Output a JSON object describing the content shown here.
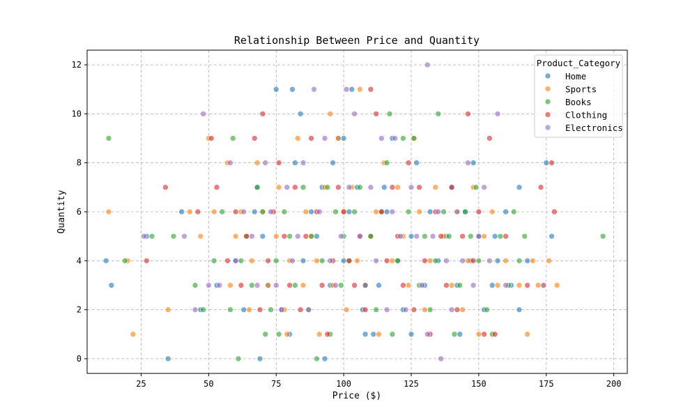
{
  "chart_data": {
    "type": "scatter",
    "title": "Relationship Between Price and Quantity",
    "xlabel": "Price ($)",
    "ylabel": "Quantity",
    "xlim": [
      5,
      205
    ],
    "ylim": [
      -0.6,
      12.6
    ],
    "xticks": [
      25,
      50,
      75,
      100,
      125,
      150,
      175,
      200
    ],
    "yticks": [
      0,
      2,
      4,
      6,
      8,
      10,
      12
    ],
    "grid": true,
    "legend": {
      "title": "Product_Category",
      "placement": "top-right"
    },
    "series": [
      {
        "name": "Home",
        "color": "#1f77b4",
        "points": [
          [
            12,
            4
          ],
          [
            14,
            3
          ],
          [
            27,
            5
          ],
          [
            35,
            0
          ],
          [
            40,
            6
          ],
          [
            47,
            2
          ],
          [
            53,
            3
          ],
          [
            60,
            4
          ],
          [
            63,
            2
          ],
          [
            67,
            6
          ],
          [
            68,
            7
          ],
          [
            69,
            0
          ],
          [
            70,
            5
          ],
          [
            72,
            3
          ],
          [
            75,
            11
          ],
          [
            77,
            2
          ],
          [
            80,
            1
          ],
          [
            81,
            11
          ],
          [
            82,
            8
          ],
          [
            84,
            10
          ],
          [
            85,
            4
          ],
          [
            88,
            6
          ],
          [
            90,
            5
          ],
          [
            92,
            7
          ],
          [
            93,
            0
          ],
          [
            95,
            3
          ],
          [
            96,
            8
          ],
          [
            98,
            9
          ],
          [
            100,
            4
          ],
          [
            100,
            9
          ],
          [
            102,
            6
          ],
          [
            103,
            11
          ],
          [
            105,
            7
          ],
          [
            107,
            2
          ],
          [
            108,
            1
          ],
          [
            110,
            5
          ],
          [
            111,
            1
          ],
          [
            113,
            3
          ],
          [
            115,
            7
          ],
          [
            116,
            6
          ],
          [
            118,
            9
          ],
          [
            120,
            4
          ],
          [
            122,
            2
          ],
          [
            125,
            5
          ],
          [
            125,
            1
          ],
          [
            127,
            8
          ],
          [
            130,
            3
          ],
          [
            132,
            6
          ],
          [
            135,
            4
          ],
          [
            138,
            5
          ],
          [
            140,
            7
          ],
          [
            142,
            3
          ],
          [
            143,
            1
          ],
          [
            145,
            6
          ],
          [
            147,
            4
          ],
          [
            148,
            8
          ],
          [
            150,
            5
          ],
          [
            152,
            2
          ],
          [
            155,
            3
          ],
          [
            156,
            5
          ],
          [
            157,
            4
          ],
          [
            160,
            6
          ],
          [
            162,
            3
          ],
          [
            165,
            7
          ],
          [
            165,
            2
          ],
          [
            168,
            4
          ],
          [
            175,
            8
          ],
          [
            177,
            5
          ]
        ]
      },
      {
        "name": "Sports",
        "color": "#ff7f0e",
        "points": [
          [
            13,
            6
          ],
          [
            20,
            4
          ],
          [
            22,
            1
          ],
          [
            35,
            2
          ],
          [
            43,
            6
          ],
          [
            47,
            5
          ],
          [
            50,
            9
          ],
          [
            52,
            6
          ],
          [
            57,
            8
          ],
          [
            58,
            3
          ],
          [
            60,
            5
          ],
          [
            62,
            6
          ],
          [
            65,
            2
          ],
          [
            66,
            4
          ],
          [
            68,
            8
          ],
          [
            70,
            6
          ],
          [
            72,
            3
          ],
          [
            75,
            5
          ],
          [
            76,
            7
          ],
          [
            78,
            2
          ],
          [
            79,
            1
          ],
          [
            80,
            4
          ],
          [
            83,
            9
          ],
          [
            85,
            3
          ],
          [
            86,
            6
          ],
          [
            88,
            5
          ],
          [
            90,
            4
          ],
          [
            91,
            1
          ],
          [
            93,
            7
          ],
          [
            95,
            10
          ],
          [
            96,
            3
          ],
          [
            98,
            9
          ],
          [
            100,
            6
          ],
          [
            101,
            2
          ],
          [
            103,
            7
          ],
          [
            105,
            4
          ],
          [
            106,
            11
          ],
          [
            108,
            3
          ],
          [
            110,
            5
          ],
          [
            112,
            6
          ],
          [
            113,
            1
          ],
          [
            115,
            8
          ],
          [
            118,
            4
          ],
          [
            120,
            7
          ],
          [
            122,
            5
          ],
          [
            124,
            3
          ],
          [
            126,
            9
          ],
          [
            128,
            6
          ],
          [
            130,
            2
          ],
          [
            132,
            4
          ],
          [
            134,
            7
          ],
          [
            137,
            5
          ],
          [
            140,
            3
          ],
          [
            142,
            6
          ],
          [
            144,
            2
          ],
          [
            146,
            4
          ],
          [
            148,
            7
          ],
          [
            150,
            1
          ],
          [
            152,
            5
          ],
          [
            155,
            6
          ],
          [
            157,
            3
          ],
          [
            160,
            4
          ],
          [
            165,
            3
          ],
          [
            168,
            1
          ],
          [
            170,
            4
          ],
          [
            172,
            3
          ],
          [
            174,
            3
          ],
          [
            176,
            4
          ],
          [
            179,
            3
          ]
        ]
      },
      {
        "name": "Books",
        "color": "#2ca02c",
        "points": [
          [
            13,
            9
          ],
          [
            19,
            4
          ],
          [
            29,
            5
          ],
          [
            37,
            5
          ],
          [
            45,
            3
          ],
          [
            48,
            2
          ],
          [
            52,
            4
          ],
          [
            55,
            6
          ],
          [
            58,
            2
          ],
          [
            59,
            9
          ],
          [
            61,
            0
          ],
          [
            62,
            4
          ],
          [
            64,
            5
          ],
          [
            66,
            3
          ],
          [
            68,
            7
          ],
          [
            70,
            6
          ],
          [
            71,
            1
          ],
          [
            73,
            2
          ],
          [
            75,
            4
          ],
          [
            76,
            1
          ],
          [
            78,
            6
          ],
          [
            80,
            5
          ],
          [
            82,
            3
          ],
          [
            85,
            7
          ],
          [
            87,
            2
          ],
          [
            88,
            5
          ],
          [
            90,
            0
          ],
          [
            92,
            4
          ],
          [
            94,
            7
          ],
          [
            95,
            1
          ],
          [
            97,
            6
          ],
          [
            99,
            3
          ],
          [
            100,
            5
          ],
          [
            102,
            4
          ],
          [
            104,
            6
          ],
          [
            106,
            7
          ],
          [
            108,
            3
          ],
          [
            110,
            5
          ],
          [
            112,
            2
          ],
          [
            114,
            6
          ],
          [
            116,
            8
          ],
          [
            117,
            10
          ],
          [
            118,
            1
          ],
          [
            120,
            4
          ],
          [
            122,
            9
          ],
          [
            124,
            6
          ],
          [
            126,
            9
          ],
          [
            128,
            3
          ],
          [
            130,
            5
          ],
          [
            132,
            2
          ],
          [
            134,
            4
          ],
          [
            135,
            10
          ],
          [
            137,
            6
          ],
          [
            139,
            5
          ],
          [
            141,
            1
          ],
          [
            143,
            3
          ],
          [
            145,
            6
          ],
          [
            147,
            5
          ],
          [
            149,
            7
          ],
          [
            150,
            4
          ],
          [
            153,
            2
          ],
          [
            155,
            1
          ],
          [
            158,
            5
          ],
          [
            161,
            3
          ],
          [
            163,
            6
          ],
          [
            165,
            4
          ],
          [
            167,
            5
          ],
          [
            196,
            5
          ]
        ]
      },
      {
        "name": "Clothing",
        "color": "#d62728",
        "points": [
          [
            27,
            4
          ],
          [
            34,
            7
          ],
          [
            46,
            6
          ],
          [
            51,
            9
          ],
          [
            53,
            7
          ],
          [
            57,
            4
          ],
          [
            60,
            6
          ],
          [
            62,
            3
          ],
          [
            64,
            5
          ],
          [
            67,
            9
          ],
          [
            69,
            2
          ],
          [
            70,
            10
          ],
          [
            72,
            4
          ],
          [
            74,
            6
          ],
          [
            76,
            8
          ],
          [
            78,
            5
          ],
          [
            80,
            3
          ],
          [
            82,
            7
          ],
          [
            84,
            2
          ],
          [
            86,
            5
          ],
          [
            88,
            9
          ],
          [
            90,
            6
          ],
          [
            92,
            3
          ],
          [
            94,
            1
          ],
          [
            96,
            4
          ],
          [
            98,
            7
          ],
          [
            100,
            6
          ],
          [
            102,
            4
          ],
          [
            104,
            3
          ],
          [
            106,
            5
          ],
          [
            108,
            2
          ],
          [
            110,
            11
          ],
          [
            112,
            10
          ],
          [
            114,
            6
          ],
          [
            116,
            4
          ],
          [
            118,
            7
          ],
          [
            120,
            5
          ],
          [
            122,
            3
          ],
          [
            124,
            8
          ],
          [
            126,
            2
          ],
          [
            128,
            7
          ],
          [
            130,
            4
          ],
          [
            132,
            1
          ],
          [
            134,
            6
          ],
          [
            136,
            5
          ],
          [
            138,
            3
          ],
          [
            140,
            7
          ],
          [
            142,
            2
          ],
          [
            144,
            5
          ],
          [
            146,
            10
          ],
          [
            148,
            4
          ],
          [
            150,
            6
          ],
          [
            152,
            1
          ],
          [
            154,
            9
          ],
          [
            156,
            1
          ],
          [
            160,
            5
          ],
          [
            168,
            3
          ],
          [
            173,
            7
          ],
          [
            177,
            8
          ],
          [
            178,
            6
          ]
        ]
      },
      {
        "name": "Electronics",
        "color": "#9467bd",
        "points": [
          [
            26,
            5
          ],
          [
            41,
            5
          ],
          [
            45,
            2
          ],
          [
            48,
            10
          ],
          [
            50,
            3
          ],
          [
            54,
            3
          ],
          [
            58,
            8
          ],
          [
            60,
            4
          ],
          [
            63,
            6
          ],
          [
            66,
            5
          ],
          [
            68,
            3
          ],
          [
            71,
            8
          ],
          [
            73,
            6
          ],
          [
            75,
            3
          ],
          [
            77,
            2
          ],
          [
            79,
            7
          ],
          [
            81,
            4
          ],
          [
            83,
            5
          ],
          [
            85,
            8
          ],
          [
            87,
            2
          ],
          [
            89,
            11
          ],
          [
            91,
            6
          ],
          [
            93,
            9
          ],
          [
            95,
            4
          ],
          [
            97,
            3
          ],
          [
            99,
            5
          ],
          [
            101,
            11
          ],
          [
            102,
            7
          ],
          [
            104,
            10
          ],
          [
            106,
            5
          ],
          [
            108,
            3
          ],
          [
            110,
            7
          ],
          [
            112,
            4
          ],
          [
            114,
            9
          ],
          [
            116,
            2
          ],
          [
            118,
            6
          ],
          [
            119,
            9
          ],
          [
            121,
            5
          ],
          [
            123,
            2
          ],
          [
            125,
            7
          ],
          [
            127,
            5
          ],
          [
            129,
            3
          ],
          [
            131,
            12
          ],
          [
            131,
            1
          ],
          [
            133,
            5
          ],
          [
            135,
            6
          ],
          [
            136,
            0
          ],
          [
            138,
            4
          ],
          [
            140,
            2
          ],
          [
            142,
            6
          ],
          [
            144,
            4
          ],
          [
            146,
            8
          ],
          [
            148,
            3
          ],
          [
            150,
            5
          ],
          [
            152,
            7
          ],
          [
            154,
            4
          ],
          [
            157,
            10
          ],
          [
            160,
            3
          ],
          [
            174,
            3
          ]
        ]
      }
    ]
  }
}
